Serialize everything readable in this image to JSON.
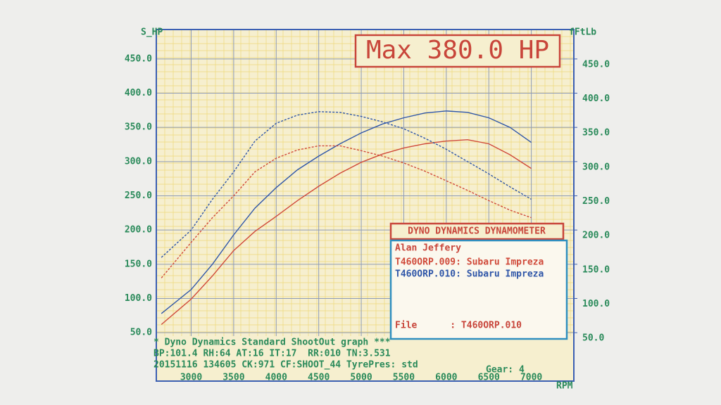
{
  "chart_data": {
    "type": "line",
    "y_axis_label": "S_HP",
    "y2_axis_label": "fFtLb",
    "x_axis_label": "RPM",
    "annotation": "Max 380.0 HP",
    "legend_title": "DYNO DYNAMICS DYNAMOMETER",
    "operator": "Alan Jeffery",
    "file_line": "File      : T460ORP.010",
    "footer": [
      "* Dyno Dynamics Standard ShootOut graph ***",
      "BP:101.4 RH:64 AT:16 IT:17  RR:010 TN:3.531",
      "20151116 134605 CK:971 CF:SHOOT_44 TyrePres: std"
    ],
    "gear": "Gear: 4",
    "x": [
      2650,
      3000,
      3250,
      3500,
      3750,
      4000,
      4250,
      4500,
      4750,
      5000,
      5250,
      5500,
      5750,
      6000,
      6250,
      6500,
      6750,
      7000
    ],
    "series": [
      {
        "name": "T460ORP.009: Subaru Impreza",
        "color": "#d04a3a",
        "values": [
          62,
          99,
          133,
          170,
          198,
          220,
          243,
          264,
          283,
          299,
          311,
          320,
          326,
          330,
          332,
          326,
          310,
          290
        ]
      },
      {
        "name": "T460ORP.010: Subaru Impreza",
        "color": "#2f56a8",
        "values": [
          78,
          113,
          150,
          193,
          232,
          262,
          288,
          308,
          326,
          342,
          355,
          364,
          371,
          374,
          372,
          364,
          350,
          328
        ]
      },
      {
        "axis": "y2",
        "dashed": true,
        "color": "#d04a3a",
        "values": [
          130,
          182,
          218,
          250,
          285,
          305,
          317,
          323,
          323,
          316,
          308,
          298,
          286,
          272,
          258,
          243,
          229,
          218
        ]
      },
      {
        "axis": "y2",
        "dashed": true,
        "color": "#2f56a8",
        "values": [
          160,
          200,
          245,
          285,
          330,
          356,
          368,
          373,
          372,
          366,
          358,
          348,
          334,
          318,
          300,
          282,
          263,
          245
        ]
      }
    ],
    "xlim": [
      2590,
      7500
    ],
    "xticks": [
      3000,
      3500,
      4000,
      4500,
      5000,
      5500,
      6000,
      6500,
      7000
    ],
    "ylim": [
      45,
      493
    ],
    "yticks": [
      {
        "value": 50,
        "label": "50.0"
      },
      {
        "value": 100,
        "label": "100.0"
      },
      {
        "value": 150,
        "label": "150.0"
      },
      {
        "value": 200,
        "label": "200.0"
      },
      {
        "value": 250,
        "label": "250.0"
      },
      {
        "value": 300,
        "label": "300.0"
      },
      {
        "value": 350,
        "label": "350.0"
      },
      {
        "value": 400,
        "label": "400.0"
      },
      {
        "value": 450,
        "label": "450.0"
      }
    ],
    "y2lim": [
      45,
      493
    ],
    "y2ticks": [
      {
        "value": 50,
        "label": "50.0"
      },
      {
        "value": 100,
        "label": "100.0"
      },
      {
        "value": 150,
        "label": "150.0"
      },
      {
        "value": 200,
        "label": "200.0"
      },
      {
        "value": 250,
        "label": "250.0"
      },
      {
        "value": 300,
        "label": "300.0"
      },
      {
        "value": 350,
        "label": "350.0"
      },
      {
        "value": 400,
        "label": "400.0"
      },
      {
        "value": 450,
        "label": "450.0"
      }
    ],
    "grid": true
  }
}
